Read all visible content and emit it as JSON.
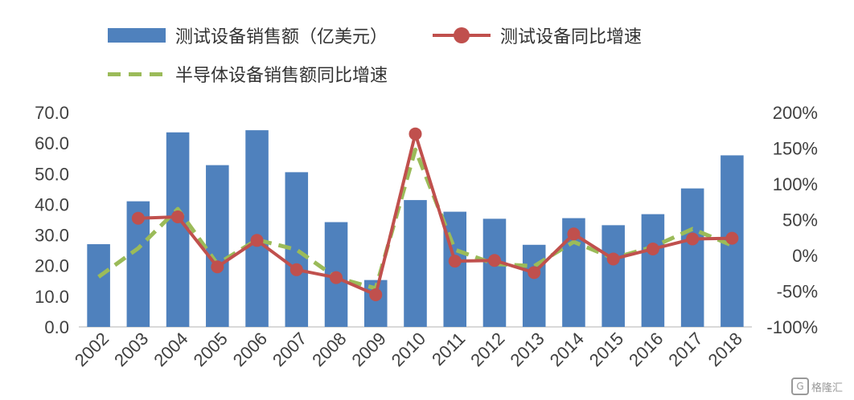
{
  "legend": {
    "bar_label": "测试设备销售额（亿美元）",
    "red_label": "测试设备同比增速",
    "green_label": "半导体设备销售额同比增速"
  },
  "watermark": {
    "text": "格隆汇"
  },
  "colors": {
    "bar": "#4f81bd",
    "red": "#c0504d",
    "green": "#9bbb59",
    "grid": "#d9d9d9"
  },
  "chart_data": {
    "type": "bar",
    "categories": [
      "2002",
      "2003",
      "2004",
      "2005",
      "2006",
      "2007",
      "2008",
      "2009",
      "2010",
      "2011",
      "2012",
      "2013",
      "2014",
      "2015",
      "2016",
      "2017",
      "2018"
    ],
    "series": [
      {
        "name": "测试设备销售额（亿美元）",
        "type": "bar",
        "axis": "left",
        "values": [
          27.0,
          41.0,
          63.5,
          52.8,
          64.2,
          50.5,
          34.2,
          15.3,
          41.4,
          37.6,
          35.3,
          26.8,
          35.5,
          33.2,
          36.8,
          45.2,
          56.0
        ]
      },
      {
        "name": "测试设备同比增速",
        "type": "line",
        "axis": "right",
        "marker": "circle",
        "values": [
          null,
          52,
          54,
          -16,
          21,
          -20,
          -31,
          -55,
          170,
          -8,
          -7,
          -24,
          30,
          -5,
          9,
          23,
          24
        ]
      },
      {
        "name": "半导体设备销售额同比增速",
        "type": "line",
        "axis": "right",
        "style": "dashed",
        "values": [
          -30,
          10,
          65,
          -12,
          22,
          8,
          -31,
          -46,
          148,
          8,
          -12,
          -15,
          19,
          -4,
          12,
          37,
          14
        ]
      }
    ],
    "left_axis": {
      "ticks": [
        "70.0",
        "60.0",
        "50.0",
        "40.0",
        "30.0",
        "20.0",
        "10.0",
        "0.0"
      ],
      "ylim": [
        0,
        70
      ]
    },
    "right_axis": {
      "ticks": [
        "200%",
        "150%",
        "100%",
        "50%",
        "0%",
        "-50%",
        "-100%"
      ],
      "ylim": [
        -100,
        200
      ]
    },
    "legend_position": "top-left"
  }
}
